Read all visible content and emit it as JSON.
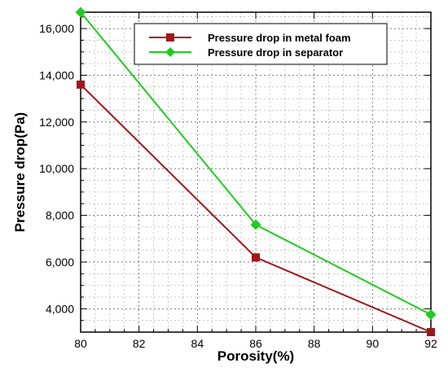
{
  "chart_data": {
    "type": "line",
    "title": "",
    "xlabel": "Porosity(%)",
    "ylabel": "Pressure drop(Pa)",
    "xlim": [
      80,
      92
    ],
    "ylim": [
      3000,
      16700
    ],
    "x_ticks": [
      "80",
      "82",
      "84",
      "86",
      "88",
      "90",
      "92"
    ],
    "y_ticks": [
      "4,000",
      "6,000",
      "8,000",
      "10,000",
      "12,000",
      "14,000",
      "16,000"
    ],
    "grid": true,
    "legend_position": "top-right",
    "series": [
      {
        "name": "Pressure drop in metal foam",
        "color": "#a0171c",
        "marker": "square",
        "x": [
          80,
          86,
          92
        ],
        "values": [
          13600,
          6200,
          3000
        ]
      },
      {
        "name": "Pressure drop in separator",
        "color": "#21cc21",
        "marker": "diamond",
        "x": [
          80,
          86,
          92
        ],
        "values": [
          16700,
          7600,
          3750
        ]
      }
    ]
  }
}
